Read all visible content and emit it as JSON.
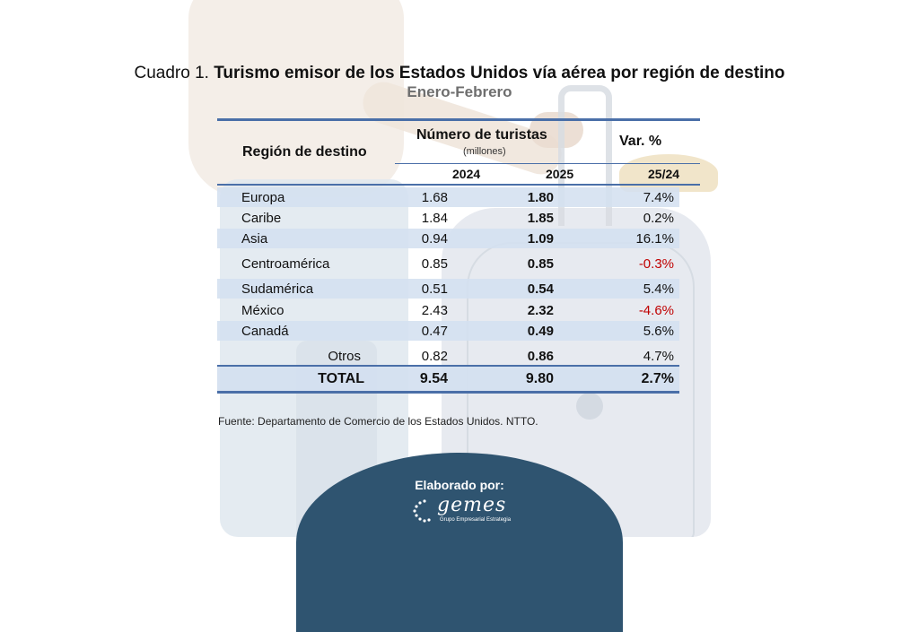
{
  "title": {
    "prefix": "Cuadro 1.",
    "text": "Turismo emisor de los Estados Unidos vía aérea por región de destino",
    "subtitle": "Enero-Febrero"
  },
  "table": {
    "headers": {
      "region": "Región de destino",
      "tourists": "Número de turistas",
      "tourists_unit": "(millones)",
      "variation": "Var. %",
      "year_2024": "2024",
      "year_2025": "2025",
      "variation_period": "25/24"
    },
    "rows": [
      {
        "region": "Europa",
        "v2024": "1.68",
        "v2025": "1.80",
        "var": "7.4%",
        "negative": false
      },
      {
        "region": "Caribe",
        "v2024": "1.84",
        "v2025": "1.85",
        "var": "0.2%",
        "negative": false
      },
      {
        "region": "Asia",
        "v2024": "0.94",
        "v2025": "1.09",
        "var": "16.1%",
        "negative": false
      },
      {
        "region": "Centroamérica",
        "v2024": "0.85",
        "v2025": "0.85",
        "var": "-0.3%",
        "negative": true
      },
      {
        "region": "Sudamérica",
        "v2024": "0.51",
        "v2025": "0.54",
        "var": "5.4%",
        "negative": false
      },
      {
        "region": "México",
        "v2024": "2.43",
        "v2025": "2.32",
        "var": "-4.6%",
        "negative": true
      },
      {
        "region": "Canadá",
        "v2024": "0.47",
        "v2025": "0.49",
        "var": "5.6%",
        "negative": false
      },
      {
        "region": "Otros",
        "v2024": "0.82",
        "v2025": "0.86",
        "var": "4.7%",
        "negative": false
      }
    ],
    "total": {
      "label": "TOTAL",
      "v2024": "9.54",
      "v2025": "9.80",
      "var": "2.7%"
    }
  },
  "source": "Fuente: Departamento de Comercio de los Estados Unidos. NTTO.",
  "footer": {
    "label": "Elaborado por:",
    "logo_text": "gemes",
    "logo_subtitle": "Grupo Empresarial Estrategia"
  },
  "colors": {
    "accent_line": "#4a6fa8",
    "row_shade": "#d4e0f0",
    "negative": "#c00000",
    "footer_bg": "#2f5470"
  }
}
